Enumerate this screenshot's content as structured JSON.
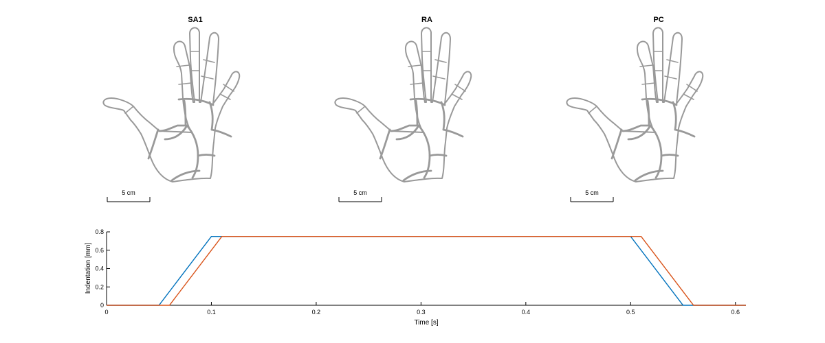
{
  "hands": [
    {
      "title": "SA1",
      "scale_label": "5 cm"
    },
    {
      "title": "RA",
      "scale_label": "5 cm"
    },
    {
      "title": "PC",
      "scale_label": "5 cm"
    }
  ],
  "chart_data": {
    "type": "line",
    "title": "",
    "xlabel": "Time [s]",
    "ylabel": "Indentation [mm]",
    "xlim": [
      0,
      0.61
    ],
    "ylim": [
      0,
      0.8
    ],
    "xticks": [
      0,
      0.1,
      0.2,
      0.3,
      0.4,
      0.5,
      0.6
    ],
    "xtick_labels": [
      "0",
      "0.1",
      "0.2",
      "0.3",
      "0.4",
      "0.5",
      "0.6"
    ],
    "yticks": [
      0,
      0.2,
      0.4,
      0.6,
      0.8
    ],
    "ytick_labels": [
      "0",
      "0.2",
      "0.4",
      "0.6",
      "0.8"
    ],
    "grid": false,
    "series": [
      {
        "color": "#0072BD",
        "x": [
          0,
          0.05,
          0.1,
          0.11,
          0.5,
          0.55,
          0.61
        ],
        "y": [
          0,
          0,
          0.75,
          0.75,
          0.75,
          0,
          0
        ]
      },
      {
        "color": "#D95319",
        "x": [
          0,
          0.06,
          0.11,
          0.51,
          0.56,
          0.61
        ],
        "y": [
          0,
          0,
          0.75,
          0.75,
          0,
          0
        ]
      }
    ]
  }
}
